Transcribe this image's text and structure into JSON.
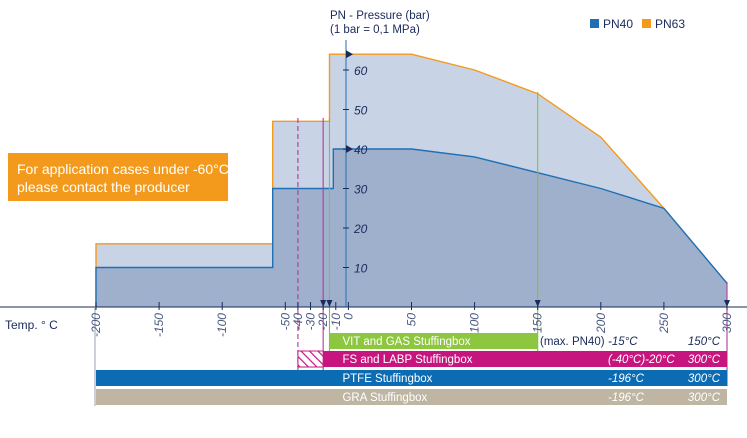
{
  "chart_data": {
    "type": "area",
    "y_axis_title_line1": "PN - Pressure (bar)",
    "y_axis_title_line2": "(1 bar = 0,1 MPa)",
    "xlabel": "Temp. ° C",
    "x_ticks": [
      -200,
      -150,
      -100,
      -50,
      -40,
      -30,
      -20,
      -10,
      0,
      50,
      100,
      150,
      200,
      250,
      300
    ],
    "y_ticks": [
      10,
      20,
      30,
      40,
      50,
      60
    ],
    "xlim": [
      -200,
      300
    ],
    "ylim": [
      0,
      65
    ],
    "grid": false,
    "legend_position": "top-right",
    "legend": [
      {
        "label": "PN40",
        "color": "#1f6fb5"
      },
      {
        "label": "PN63",
        "color": "#f39a1c"
      }
    ],
    "series": [
      {
        "name": "PN63",
        "line_color": "#f39a1c",
        "fill_color": "#c9d3e6",
        "x": [
          -200,
          -60,
          -60,
          -20,
          -20,
          -15,
          -15,
          50,
          100,
          150,
          200,
          250,
          300
        ],
        "y": [
          16,
          16,
          47,
          47,
          47,
          47,
          64,
          64,
          60,
          54,
          43,
          25,
          6
        ]
      },
      {
        "name": "PN40",
        "line_color": "#1f6fb5",
        "fill_color": "#9fb0cc",
        "x": [
          -200,
          -60,
          -60,
          -12,
          -12,
          0,
          50,
          100,
          150,
          200,
          250,
          300
        ],
        "y": [
          10,
          10,
          30,
          30,
          40,
          40,
          40,
          38,
          34,
          30,
          25,
          6
        ]
      }
    ],
    "notice_line1": "For application cases under -60°C",
    "notice_line2": "please contact the producer",
    "notice_color": "#f39a1c",
    "guide_lines": [
      {
        "x": -40,
        "style": "dashed",
        "color": "#b03a9a"
      },
      {
        "x": -20,
        "style": "solid",
        "color": "#b03a9a"
      },
      {
        "x": -15,
        "style": "solid",
        "color": "#7cc242"
      },
      {
        "x": 150,
        "style": "solid",
        "color": "#7cc242"
      },
      {
        "x": 300,
        "style": "solid",
        "color": "#b03a9a"
      }
    ],
    "bars": [
      {
        "label": "VIT and GAS Stuffingbox",
        "from": -15,
        "to": 150,
        "color": "#8dc63f",
        "note": "(max. PN40)",
        "min_temp": "-15°C",
        "max_temp": "150°C"
      },
      {
        "label": "FS and LABP Stuffingbox",
        "from": -20,
        "to": 300,
        "hatch_from": -40,
        "color": "#c7157f",
        "note": "",
        "min_temp": "(-40°C)-20°C",
        "max_temp": "300°C"
      },
      {
        "label": "PTFE Stuffingbox",
        "from": -200,
        "to": 300,
        "color": "#0b6cb4",
        "note": "",
        "min_temp": "-196°C",
        "max_temp": "300°C"
      },
      {
        "label": "GRA Stuffingbox",
        "from": -200,
        "to": 300,
        "color": "#bfb5a3",
        "note": "",
        "min_temp": "-196°C",
        "max_temp": "300°C"
      }
    ]
  }
}
